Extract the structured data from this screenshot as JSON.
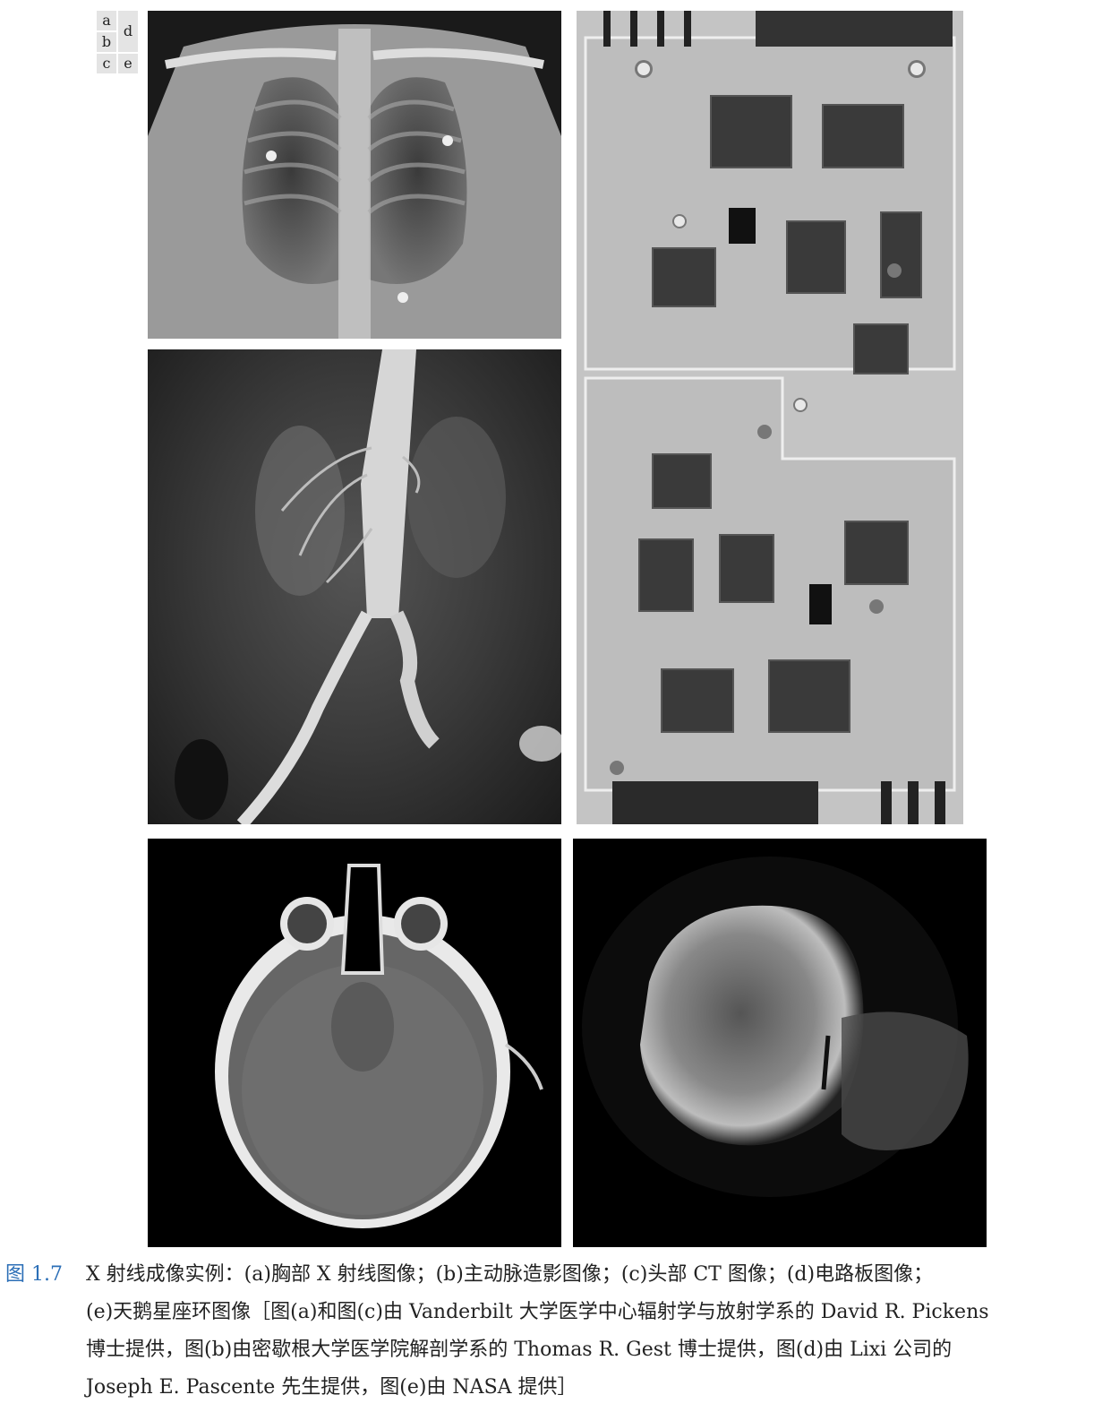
{
  "figure_key": {
    "a": "a",
    "b": "b",
    "c": "c",
    "d": "d",
    "e": "e"
  },
  "panels": {
    "a": {
      "subject": "chest X-ray"
    },
    "b": {
      "subject": "aortic angiogram"
    },
    "c": {
      "subject": "head CT"
    },
    "d": {
      "subject": "circuit board X-ray"
    },
    "e": {
      "subject": "Cygnus Loop X-ray"
    }
  },
  "caption": {
    "label": "图 1.7",
    "line1": "X 射线成像实例：(a)胸部 X 射线图像；(b)主动脉造影图像；(c)头部 CT 图像；(d)电路板图像；",
    "line2": "(e)天鹅星座环图像［图(a)和图(c)由 Vanderbilt 大学医学中心辐射学与放射学系的 David  R.  Pickens",
    "line3": "博士提供，图(b)由密歇根大学医学院解剖学系的 Thomas R. Gest 博士提供，图(d)由 Lixi 公司的",
    "line4": "Joseph E. Pascente 先生提供，图(e)由 NASA 提供］"
  }
}
